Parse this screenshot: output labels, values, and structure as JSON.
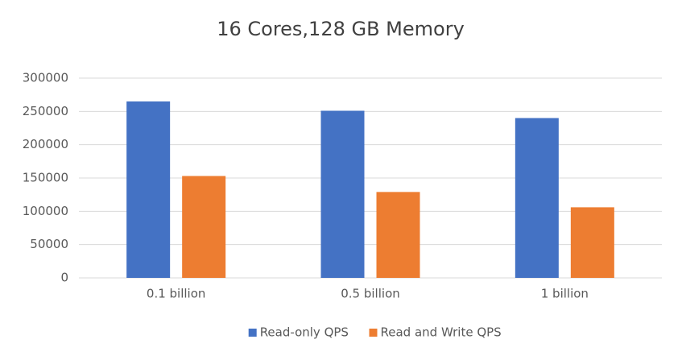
{
  "chart_data": {
    "type": "bar",
    "title": "16 Cores,128 GB Memory",
    "categories": [
      "0.1 billion",
      "0.5 billion",
      "1 billion"
    ],
    "series": [
      {
        "name": "Read-only QPS",
        "color": "#4472c4",
        "values": [
          265000,
          251000,
          240000
        ]
      },
      {
        "name": "Read and Write QPS",
        "color": "#ed7d31",
        "values": [
          153000,
          129000,
          106000
        ]
      }
    ],
    "ylim": [
      0,
      300000
    ],
    "yticks": [
      0,
      50000,
      100000,
      150000,
      200000,
      250000,
      300000
    ],
    "grid": true,
    "legend": "bottom"
  }
}
